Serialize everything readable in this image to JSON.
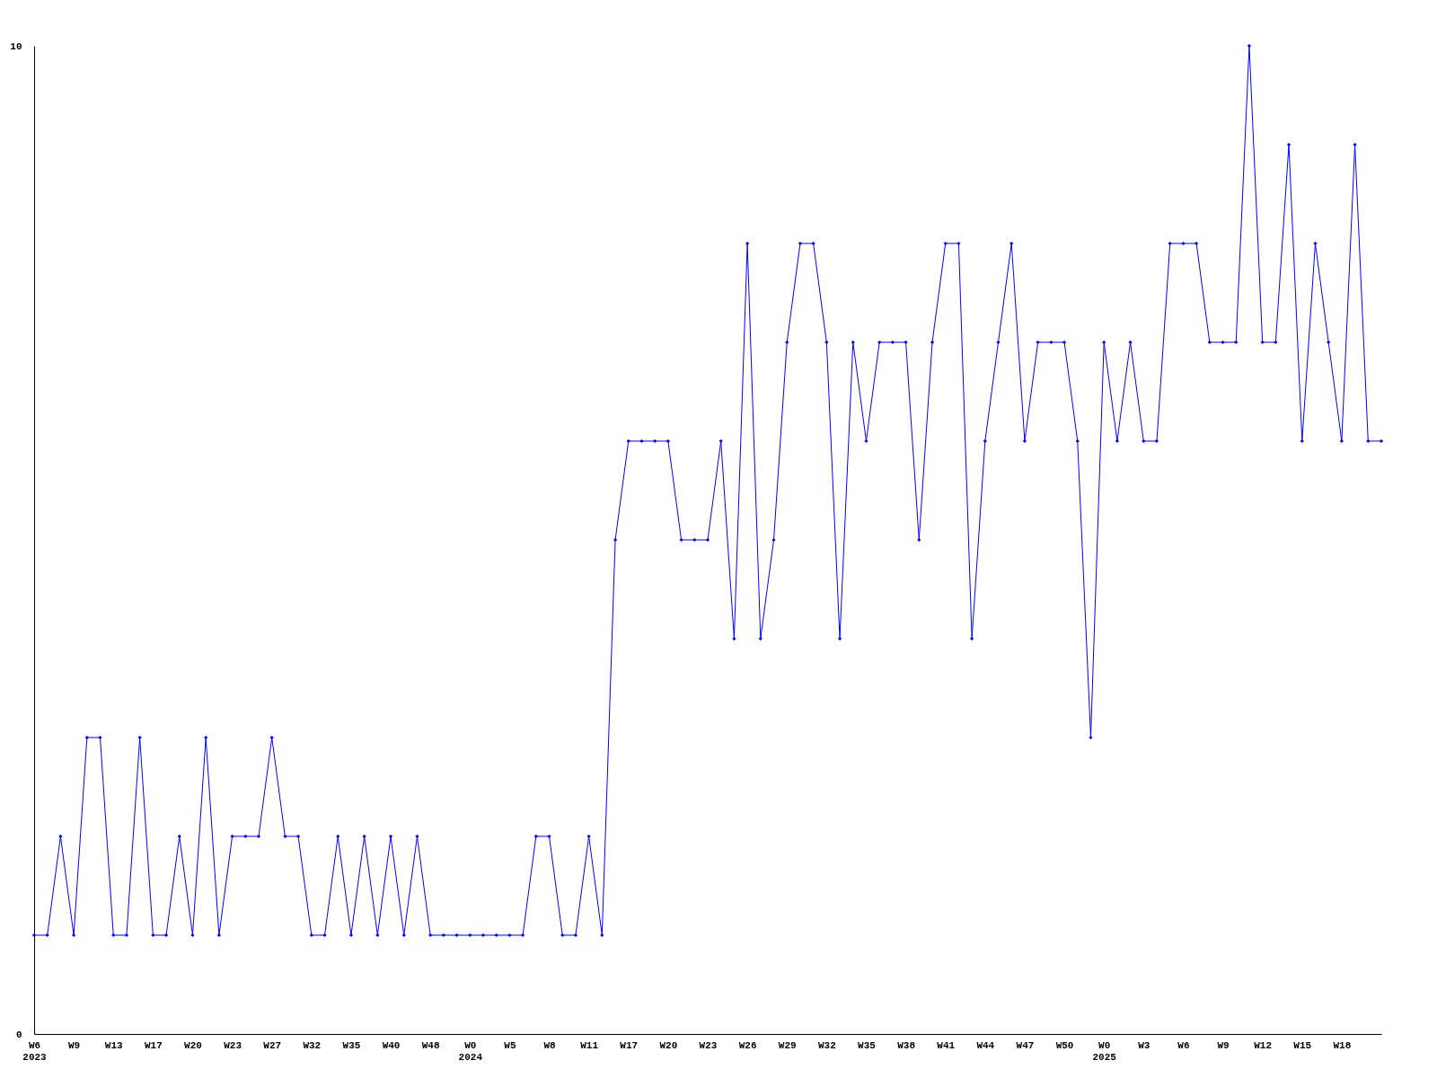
{
  "chart_data": {
    "type": "line",
    "categories": [
      "W6\n2023",
      null,
      null,
      "W9",
      null,
      null,
      "W13",
      null,
      null,
      "W17",
      null,
      null,
      "W20",
      null,
      null,
      "W23",
      null,
      null,
      "W27",
      null,
      null,
      "W32",
      null,
      null,
      "W35",
      null,
      null,
      "W40",
      null,
      null,
      "W48",
      null,
      null,
      "W0\n2024",
      null,
      null,
      "W5",
      null,
      null,
      "W8",
      null,
      null,
      "W11",
      null,
      null,
      "W17",
      null,
      null,
      "W20",
      null,
      null,
      "W23",
      null,
      null,
      "W26",
      null,
      null,
      "W29",
      null,
      null,
      "W32",
      null,
      null,
      "W35",
      null,
      null,
      "W38",
      null,
      null,
      "W41",
      null,
      null,
      "W44",
      null,
      null,
      "W47",
      null,
      null,
      "W50",
      null,
      null,
      "W0\n2025",
      null,
      null,
      "W3",
      null,
      null,
      "W6",
      null,
      null,
      "W9",
      null,
      null,
      "W12",
      null,
      null,
      "W15",
      null,
      null,
      "W18",
      null,
      null,
      null
    ],
    "series": [
      {
        "color": "#0000ff",
        "values": [
          1,
          1,
          2,
          1,
          3,
          3,
          1,
          1,
          3,
          1,
          1,
          2,
          1,
          3,
          1,
          2,
          2,
          2,
          3,
          2,
          2,
          1,
          1,
          2,
          1,
          2,
          1,
          2,
          1,
          2,
          1,
          1,
          1,
          1,
          1,
          1,
          1,
          1,
          2,
          2,
          1,
          1,
          2,
          1,
          5,
          6,
          6,
          6,
          6,
          5,
          5,
          5,
          6,
          4,
          8,
          4,
          5,
          7,
          8,
          8,
          7,
          4,
          7,
          6,
          7,
          7,
          7,
          5,
          7,
          8,
          8,
          4,
          6,
          7,
          8,
          6,
          7,
          7,
          7,
          6,
          3,
          7,
          6,
          7,
          6,
          6,
          8,
          8,
          8,
          7,
          7,
          7,
          10,
          7,
          7,
          9,
          6,
          8,
          7,
          6,
          9,
          6,
          6
        ]
      }
    ],
    "ylim": [
      0,
      10
    ],
    "yticks": [
      0,
      10
    ],
    "grid": false,
    "marker": "diamond",
    "line_style": "solid"
  }
}
